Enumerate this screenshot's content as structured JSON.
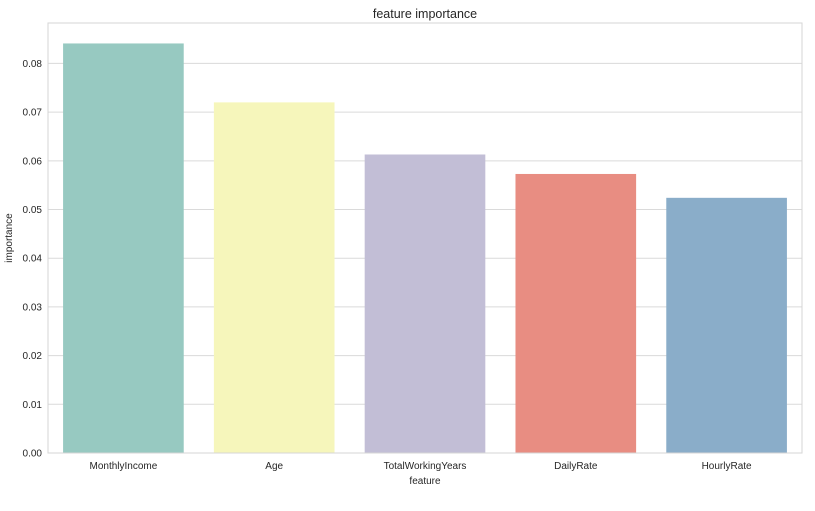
{
  "chart_data": {
    "type": "bar",
    "title": "feature importance",
    "xlabel": "feature",
    "ylabel": "importance",
    "categories": [
      "MonthlyIncome",
      "Age",
      "TotalWorkingYears",
      "DailyRate",
      "HourlyRate"
    ],
    "values": [
      0.0841,
      0.072,
      0.0613,
      0.0573,
      0.0524
    ],
    "colors": [
      "#97c9c1",
      "#f6f6bb",
      "#c2bed6",
      "#e88d82",
      "#8aadc9"
    ],
    "ylim": [
      0,
      0.0883
    ],
    "yticks": [
      "0.00",
      "0.01",
      "0.02",
      "0.03",
      "0.04",
      "0.05",
      "0.06",
      "0.07",
      "0.08"
    ],
    "grid": "horizontal",
    "legend": "none"
  }
}
